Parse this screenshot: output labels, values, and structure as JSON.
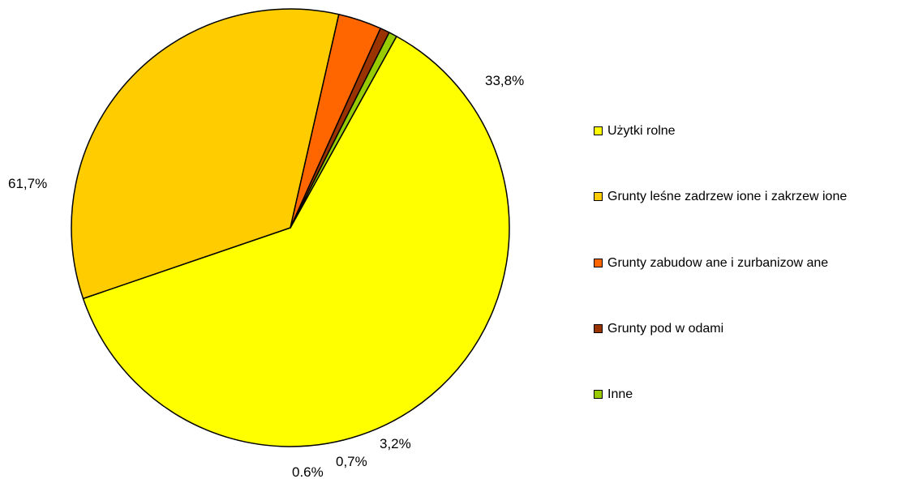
{
  "chart_data": {
    "type": "pie",
    "slices": [
      {
        "label": "Użytki rolne",
        "value": 61.7,
        "pct_text": "61,7%",
        "color": "#ffff00"
      },
      {
        "label": "Grunty leśne zadrzew ione i zakrzew ione",
        "value": 33.8,
        "pct_text": "33,8%",
        "color": "#ffcc00"
      },
      {
        "label": "Grunty zabudow ane i zurbanizow ane",
        "value": 3.2,
        "pct_text": "3,2%",
        "color": "#ff6600"
      },
      {
        "label": "Grunty pod w odami",
        "value": 0.7,
        "pct_text": "0,7%",
        "color": "#993300"
      },
      {
        "label": "Inne",
        "value": 0.6,
        "pct_text": "0.6%",
        "color": "#99cc00"
      }
    ],
    "start_angle_deg": 29,
    "direction": "clockwise",
    "legend_position": "right"
  }
}
